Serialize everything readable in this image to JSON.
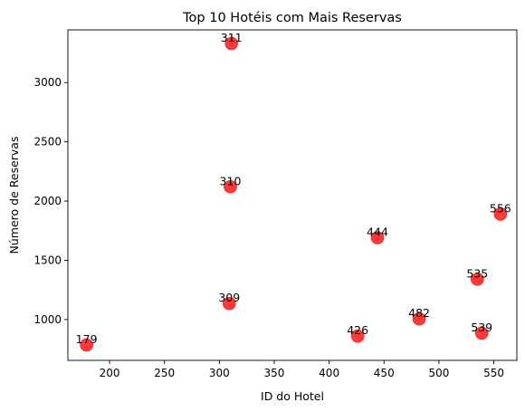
{
  "chart_data": {
    "type": "scatter",
    "title": "Top 10 Hotéis com Mais Reservas",
    "xlabel": "ID do Hotel",
    "ylabel": "Número de Reservas",
    "xlim": [
      162,
      571
    ],
    "ylim": [
      655,
      3445
    ],
    "xticks": [
      200,
      250,
      300,
      350,
      400,
      450,
      500,
      550
    ],
    "yticks": [
      1000,
      1500,
      2000,
      2500,
      3000
    ],
    "grid": false,
    "marker_color": "#ff0000",
    "points": [
      {
        "x": 311,
        "y": 3330,
        "label": "311"
      },
      {
        "x": 310,
        "y": 2120,
        "label": "310"
      },
      {
        "x": 556,
        "y": 1890,
        "label": "556"
      },
      {
        "x": 444,
        "y": 1690,
        "label": "444"
      },
      {
        "x": 535,
        "y": 1340,
        "label": "535"
      },
      {
        "x": 309,
        "y": 1135,
        "label": "309"
      },
      {
        "x": 482,
        "y": 1005,
        "label": "482"
      },
      {
        "x": 539,
        "y": 885,
        "label": "539"
      },
      {
        "x": 426,
        "y": 860,
        "label": "426"
      },
      {
        "x": 179,
        "y": 785,
        "label": "179"
      }
    ]
  }
}
